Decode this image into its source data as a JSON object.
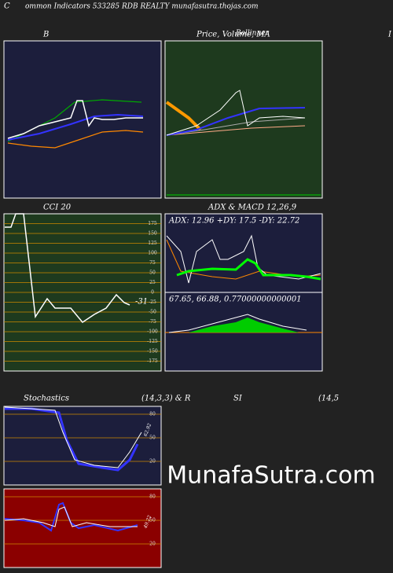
{
  "header": {
    "lead": "C",
    "title": "ommon  Indicators 533285 RDB REALTY munafasutra.thojas.com",
    "edge": "I"
  },
  "panels": [
    {
      "label": "B"
    },
    {
      "label": "Price,  Volume, MA",
      "overlay": "Bollinger"
    },
    {
      "label": "CCI 20",
      "ylim": [
        -200,
        200
      ],
      "yticks": [
        175,
        150,
        125,
        100,
        75,
        50,
        25,
        0,
        -25,
        -50,
        -75,
        -100,
        -125,
        -150,
        -175
      ],
      "value_label": "-31"
    },
    {
      "label": "ADX  & MACD 12,26,9",
      "text": "ADX: 12.96  +DY: 17.5 -DY: 22.72"
    },
    {
      "text": "67.65, 66.88, 0.77000000000001"
    },
    {
      "label": "Stochastics",
      "params": "(14,3,3) & R",
      "label2": "SI",
      "params2": "(14,5",
      "ylim": [
        -10,
        90
      ],
      "yticks": [
        80,
        50,
        20
      ],
      "value_label": "62.92"
    },
    {
      "ylim": [
        -10,
        90
      ],
      "yticks": [
        80,
        50,
        20
      ],
      "value_label": "49.22"
    }
  ],
  "watermark": "MunafaSutra.com"
}
